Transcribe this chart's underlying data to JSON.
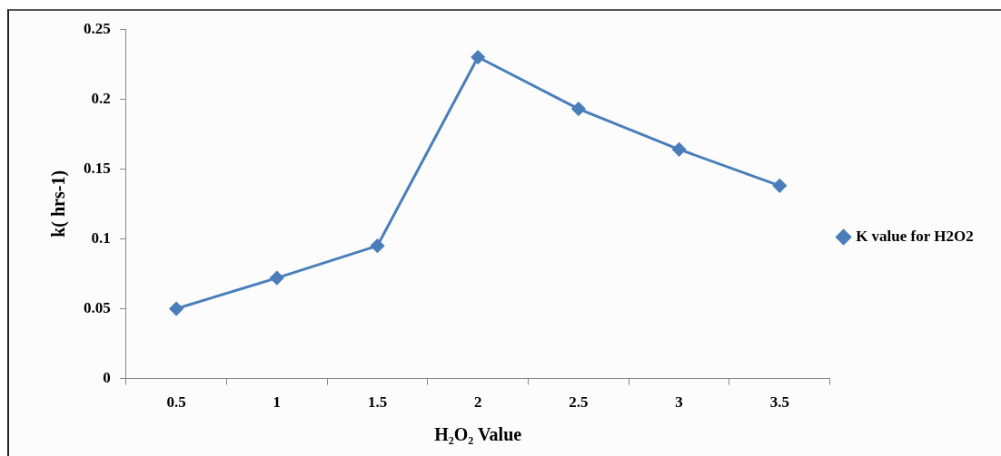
{
  "chart_data": {
    "type": "line",
    "xlabel": "H₂O₂ Value",
    "ylabel": "k( hrs-1)",
    "categories": [
      "0.5",
      "1",
      "1.5",
      "2",
      "2.5",
      "3",
      "3.5"
    ],
    "series": [
      {
        "name": "K value for H2O2",
        "color": "#4a7ebb",
        "values": [
          0.05,
          0.072,
          0.095,
          0.23,
          0.193,
          0.164,
          0.138
        ]
      }
    ],
    "ylim": [
      0,
      0.25
    ],
    "yticks": [
      0,
      0.05,
      0.1,
      0.15,
      0.2,
      0.25
    ],
    "grid": false,
    "legend": "right",
    "marker": "diamond",
    "line_style": "solid"
  }
}
